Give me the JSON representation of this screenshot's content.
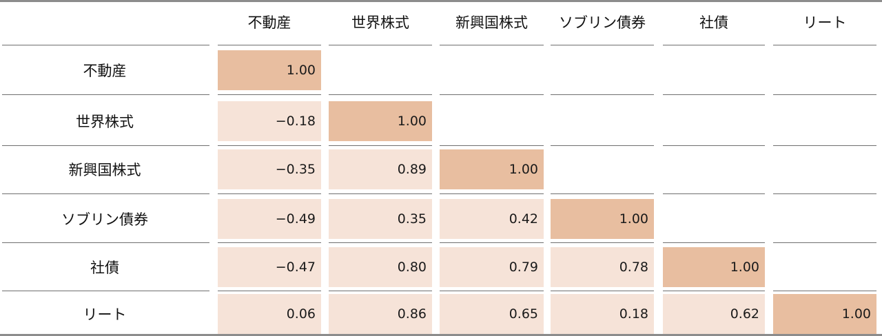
{
  "chart_data": {
    "type": "table",
    "columns": [
      "不動産",
      "世界株式",
      "新興国株式",
      "ソブリン債券",
      "社債",
      "リート"
    ],
    "rows": [
      {
        "label": "不動産",
        "values": [
          "1.00"
        ]
      },
      {
        "label": "世界株式",
        "values": [
          "−0.18",
          "1.00"
        ]
      },
      {
        "label": "新興国株式",
        "values": [
          "−0.35",
          "0.89",
          "1.00"
        ]
      },
      {
        "label": "ソブリン債券",
        "values": [
          "−0.49",
          "0.35",
          "0.42",
          "1.00"
        ]
      },
      {
        "label": "社債",
        "values": [
          "−0.47",
          "0.80",
          "0.79",
          "0.78",
          "1.00"
        ]
      },
      {
        "label": "リート",
        "values": [
          "0.06",
          "0.86",
          "0.65",
          "0.18",
          "0.62",
          "1.00"
        ]
      }
    ],
    "colors": {
      "diagonal": "#e8bea0",
      "off_diagonal": "#f6e3d8",
      "rule": "#6e6e6e"
    }
  }
}
